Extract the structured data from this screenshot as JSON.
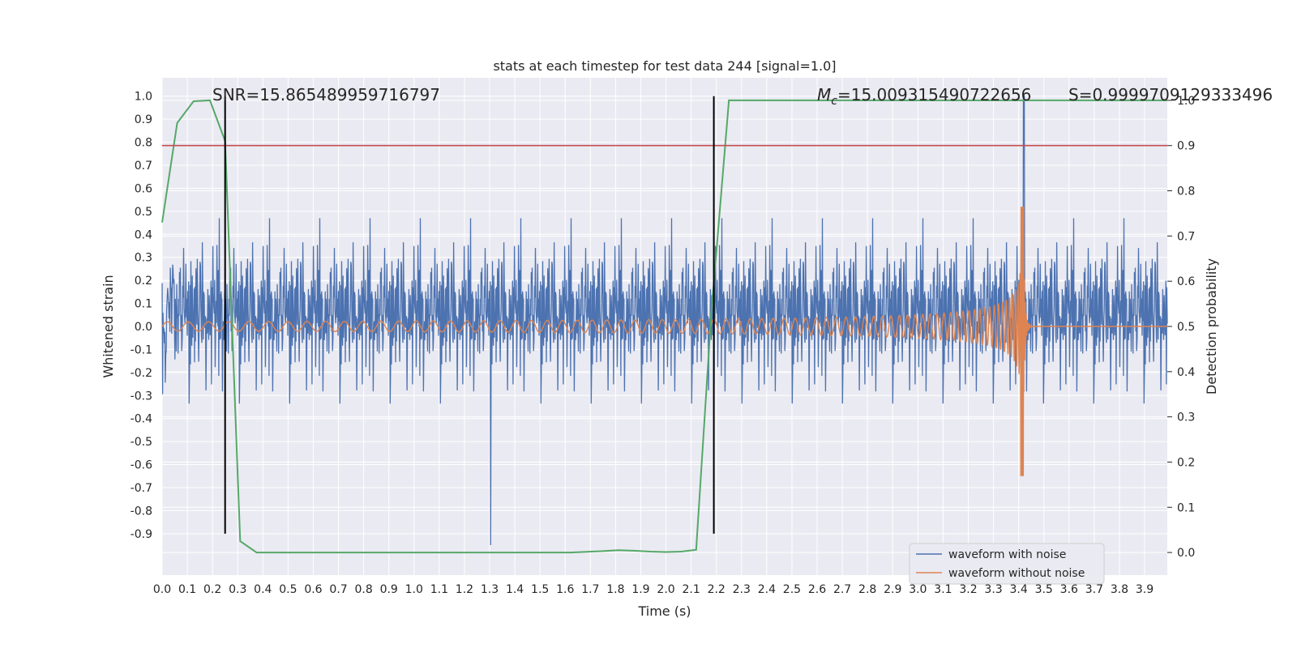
{
  "chart_data": {
    "type": "line",
    "title": "stats at each timestep for test data 244 [signal=1.0]",
    "xlabel": "Time (s)",
    "ylabel": "Whitened strain",
    "y2label": "Detection probability",
    "xlim": [
      0.0,
      3.99
    ],
    "ylim": [
      -1.08,
      1.08
    ],
    "y2lim": [
      -0.05,
      1.05
    ],
    "xticks": [
      "0.0",
      "0.1",
      "0.2",
      "0.3",
      "0.4",
      "0.5",
      "0.6",
      "0.7",
      "0.8",
      "0.9",
      "1.0",
      "1.1",
      "1.2",
      "1.3",
      "1.4",
      "1.5",
      "1.6",
      "1.7",
      "1.8",
      "1.9",
      "2.0",
      "2.1",
      "2.2",
      "2.3",
      "2.4",
      "2.5",
      "2.6",
      "2.7",
      "2.8",
      "2.9",
      "3.0",
      "3.1",
      "3.2",
      "3.3",
      "3.4",
      "3.5",
      "3.6",
      "3.7",
      "3.8",
      "3.9"
    ],
    "yticks": [
      "1.0",
      "0.9",
      "0.8",
      "0.7",
      "0.6",
      "0.5",
      "0.4",
      "0.3",
      "0.2",
      "0.1",
      "0.0",
      "-0.1",
      "-0.2",
      "-0.3",
      "-0.4",
      "-0.5",
      "-0.6",
      "-0.7",
      "-0.8",
      "-0.9"
    ],
    "y2ticks": [
      "1.0",
      "0.9",
      "0.8",
      "0.7",
      "0.6",
      "0.5",
      "0.4",
      "0.3",
      "0.2",
      "0.1",
      "0.0"
    ],
    "annotations": {
      "snr": "SNR=15.865489959716797",
      "mc_symbol": "M",
      "mc_sub": "c",
      "mc_value": "=15.009315490722656",
      "s": "S=0.9999709129333496"
    },
    "legend": {
      "position": "lower-right",
      "entries": [
        "waveform with noise",
        "waveform without noise"
      ]
    },
    "colors": {
      "noise": "#4c72b0",
      "clean": "#dd8452",
      "probability": "#55a868",
      "threshold": "#c44e52",
      "vline": "#000000",
      "background": "#eaeaf2",
      "grid": "#ffffff"
    },
    "series": [
      {
        "name": "waveform with noise",
        "description_of_values": "noisy whitened strain",
        "x_range": [
          0.0,
          3.99
        ],
        "amplitude_typical": 0.35,
        "max": 1.0,
        "min": -0.95,
        "max_at": 3.42
      },
      {
        "name": "waveform without noise",
        "x_range": [
          0.0,
          3.99
        ],
        "chirp_start_amplitude": 0.02,
        "merger_time": 3.42,
        "peak_max": 0.52,
        "peak_min": -0.65
      },
      {
        "x": [
          0.0,
          0.06,
          0.125,
          0.19,
          0.25,
          0.31,
          0.375,
          0.5,
          0.75,
          1.0,
          1.25,
          1.5,
          1.62,
          1.75,
          1.81,
          1.87,
          1.94,
          2.0,
          2.06,
          2.12,
          2.18,
          2.25,
          2.5,
          3.0,
          3.5,
          3.99
        ],
        "y": [
          0.73,
          0.95,
          0.998,
          1.0,
          0.91,
          0.025,
          0.0,
          0.0,
          0.0,
          0.0,
          0.0,
          0.0,
          0.0,
          0.003,
          0.005,
          0.004,
          0.002,
          0.001,
          0.002,
          0.006,
          0.53,
          1.0,
          1.0,
          1.0,
          1.0,
          1.0
        ]
      }
    ],
    "hlines": [
      {
        "axis": "right",
        "y": 0.9
      }
    ],
    "vlines": [
      {
        "x": 0.25,
        "ymin": -0.9,
        "ymax": 1.0
      },
      {
        "x": 2.19,
        "ymin": -0.9,
        "ymax": 1.0
      }
    ]
  }
}
